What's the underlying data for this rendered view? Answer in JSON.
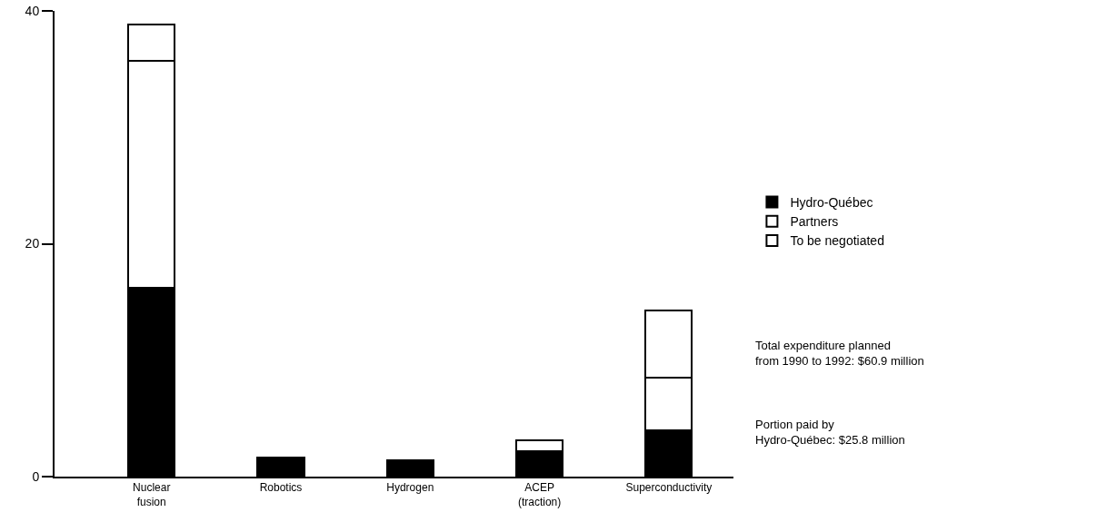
{
  "chart_data": {
    "type": "bar",
    "stacked": true,
    "categories": [
      "Nuclear fusion",
      "Robotics",
      "Hydrogen",
      "ACEP (traction)",
      "Superconductivity"
    ],
    "series": [
      {
        "name": "Hydro-Québec",
        "color": "#000000",
        "values": [
          16.2,
          1.6,
          1.4,
          2.2,
          4.0
        ]
      },
      {
        "name": "Partners",
        "color": "#ffffff",
        "values": [
          19.5,
          null,
          null,
          0.9,
          4.5
        ]
      },
      {
        "name": "To be negotiated",
        "color": "#ffffff",
        "values": [
          3.1,
          null,
          null,
          null,
          5.8
        ]
      }
    ],
    "ylim": [
      0,
      40
    ],
    "yticks": [
      0,
      20,
      40
    ],
    "grid": false,
    "legend": "right",
    "annotations": [
      "Total expenditure planned\nfrom 1990 to 1992: $60.9 million",
      "Portion paid by\nHydro-Québec: $25.8 million"
    ]
  }
}
